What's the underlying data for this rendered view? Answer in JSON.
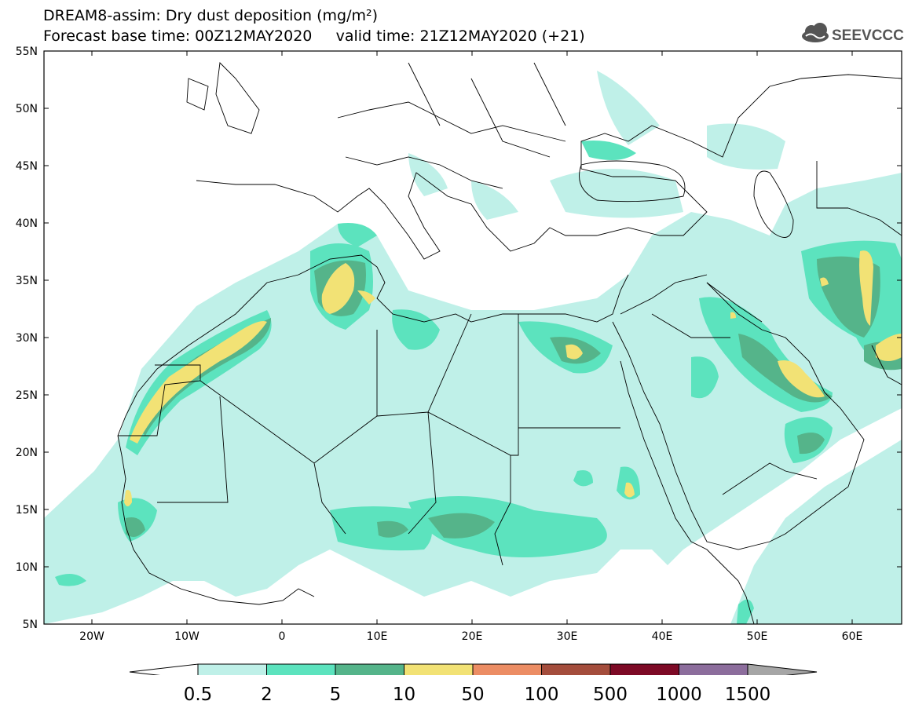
{
  "header": {
    "title_line1": "DREAM8-assim: Dry dust deposition (mg/m²)",
    "title_line2": "Forecast base time: 00Z12MAY2020     valid time: 21Z12MAY2020 (+21)",
    "logo_text": "SEEVCCC"
  },
  "map": {
    "projection": "lat-lon",
    "lon_range": [
      -25,
      65
    ],
    "lat_range": [
      5,
      55
    ],
    "lat_labels": [
      "55N",
      "50N",
      "45N",
      "40N",
      "35N",
      "30N",
      "25N",
      "20N",
      "15N",
      "10N",
      "5N"
    ],
    "lon_labels": [
      "20W",
      "10W",
      "0",
      "10E",
      "20E",
      "30E",
      "40E",
      "50E",
      "60E"
    ]
  },
  "colorbar": {
    "labels": [
      "0.5",
      "2",
      "5",
      "10",
      "50",
      "100",
      "500",
      "1000",
      "1500"
    ],
    "colors": [
      "#bff0e8",
      "#5ce3be",
      "#55b48a",
      "#f2e275",
      "#ec8d64",
      "#a44d3c",
      "#7d0a26",
      "#8c6d9c",
      "#a6a6a6"
    ]
  }
}
